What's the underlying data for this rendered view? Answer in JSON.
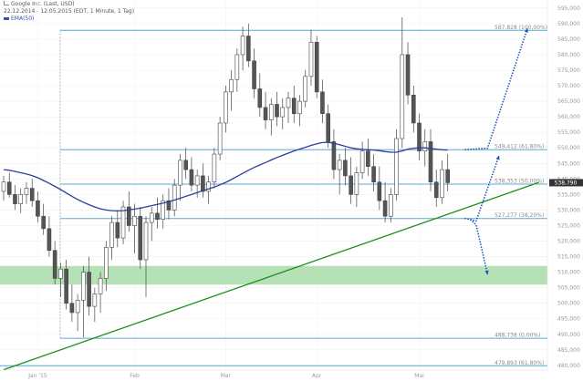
{
  "header": {
    "symbol": "Google Inc. (Last, USD)",
    "range": "22.12.2014 - 12.05.2015 (EDT, 1 Minute, 1 Tag)",
    "indicator": "EMA(50)"
  },
  "colors": {
    "candle_up": "#ffffff",
    "candle_down": "#555555",
    "candle_edge": "#444444",
    "ema": "#2e3d9c",
    "level_line": "#5aa9d6",
    "trend_line": "#1e8e1e",
    "support_zone": "#a9dba9",
    "projection": "#1a4fb8",
    "axis_text": "#999999",
    "last_price_box": "#333333"
  },
  "chart_data": {
    "type": "candlestick",
    "title": "",
    "x_labels": [
      "Jan '15",
      "Feb",
      "Mar",
      "Apr",
      "Mai"
    ],
    "y_ticks": [
      480,
      485,
      490,
      495,
      500,
      505,
      510,
      515,
      520,
      525,
      530,
      535,
      540,
      545,
      550,
      555,
      560,
      565,
      570,
      575,
      580,
      585,
      590,
      595
    ],
    "y_tick_labels": [
      "480,000",
      "485,000",
      "490,000",
      "495,000",
      "500,000",
      "505,000",
      "510,000",
      "515,000",
      "520,000",
      "525,000",
      "530,000",
      "535,000",
      "540,000",
      "545,000",
      "550,000",
      "555,000",
      "560,000",
      "565,000",
      "570,000",
      "575,000",
      "580,000",
      "585,000",
      "590,000",
      "595,000"
    ],
    "ylim": [
      478.5,
      597
    ],
    "last_price": 538.79,
    "last_price_label": "538,790",
    "fib_levels": [
      {
        "value": 587.828,
        "label": "587,828 (100,00%)"
      },
      {
        "value": 549.412,
        "label": "549,412 (61,80%)"
      },
      {
        "value": 538.353,
        "label": "538,353 (50,00%)"
      },
      {
        "value": 527.277,
        "label": "527,277 (38,20%)"
      },
      {
        "value": 488.738,
        "label": "488,738 (0,00%)"
      },
      {
        "value": 479.893,
        "label": "479,893 (61,80%)"
      }
    ],
    "support_zone": [
      506,
      512
    ],
    "candles": [
      {
        "o": 536,
        "h": 541,
        "l": 533,
        "c": 539
      },
      {
        "o": 539,
        "h": 542,
        "l": 534,
        "c": 535
      },
      {
        "o": 535,
        "h": 538,
        "l": 530,
        "c": 532
      },
      {
        "o": 532,
        "h": 537,
        "l": 529,
        "c": 535
      },
      {
        "o": 535,
        "h": 539,
        "l": 532,
        "c": 537
      },
      {
        "o": 537,
        "h": 540,
        "l": 531,
        "c": 533
      },
      {
        "o": 533,
        "h": 536,
        "l": 526,
        "c": 528
      },
      {
        "o": 528,
        "h": 532,
        "l": 522,
        "c": 524
      },
      {
        "o": 524,
        "h": 528,
        "l": 515,
        "c": 517
      },
      {
        "o": 517,
        "h": 520,
        "l": 506,
        "c": 508
      },
      {
        "o": 508,
        "h": 513,
        "l": 502,
        "c": 511
      },
      {
        "o": 511,
        "h": 514,
        "l": 498,
        "c": 500
      },
      {
        "o": 500,
        "h": 506,
        "l": 494,
        "c": 497
      },
      {
        "o": 497,
        "h": 503,
        "l": 491,
        "c": 501
      },
      {
        "o": 501,
        "h": 512,
        "l": 489,
        "c": 510
      },
      {
        "o": 510,
        "h": 515,
        "l": 496,
        "c": 499
      },
      {
        "o": 499,
        "h": 505,
        "l": 494,
        "c": 503
      },
      {
        "o": 503,
        "h": 510,
        "l": 497,
        "c": 508
      },
      {
        "o": 508,
        "h": 520,
        "l": 504,
        "c": 518
      },
      {
        "o": 518,
        "h": 528,
        "l": 514,
        "c": 526
      },
      {
        "o": 526,
        "h": 530,
        "l": 518,
        "c": 521
      },
      {
        "o": 521,
        "h": 533,
        "l": 519,
        "c": 531
      },
      {
        "o": 531,
        "h": 536,
        "l": 523,
        "c": 525
      },
      {
        "o": 525,
        "h": 532,
        "l": 516,
        "c": 528
      },
      {
        "o": 528,
        "h": 531,
        "l": 511,
        "c": 514
      },
      {
        "o": 514,
        "h": 528,
        "l": 502,
        "c": 526
      },
      {
        "o": 526,
        "h": 531,
        "l": 520,
        "c": 529
      },
      {
        "o": 529,
        "h": 534,
        "l": 524,
        "c": 527
      },
      {
        "o": 527,
        "h": 535,
        "l": 524,
        "c": 533
      },
      {
        "o": 533,
        "h": 537,
        "l": 527,
        "c": 530
      },
      {
        "o": 530,
        "h": 540,
        "l": 528,
        "c": 538
      },
      {
        "o": 538,
        "h": 548,
        "l": 533,
        "c": 546
      },
      {
        "o": 546,
        "h": 550,
        "l": 540,
        "c": 543
      },
      {
        "o": 543,
        "h": 547,
        "l": 536,
        "c": 538
      },
      {
        "o": 538,
        "h": 543,
        "l": 534,
        "c": 541
      },
      {
        "o": 541,
        "h": 545,
        "l": 534,
        "c": 536
      },
      {
        "o": 536,
        "h": 541,
        "l": 532,
        "c": 539
      },
      {
        "o": 539,
        "h": 550,
        "l": 537,
        "c": 548
      },
      {
        "o": 548,
        "h": 560,
        "l": 546,
        "c": 558
      },
      {
        "o": 558,
        "h": 570,
        "l": 555,
        "c": 568
      },
      {
        "o": 568,
        "h": 575,
        "l": 562,
        "c": 572
      },
      {
        "o": 572,
        "h": 582,
        "l": 568,
        "c": 580
      },
      {
        "o": 580,
        "h": 589,
        "l": 575,
        "c": 586
      },
      {
        "o": 586,
        "h": 590,
        "l": 576,
        "c": 578
      },
      {
        "o": 578,
        "h": 582,
        "l": 566,
        "c": 569
      },
      {
        "o": 569,
        "h": 574,
        "l": 560,
        "c": 563
      },
      {
        "o": 563,
        "h": 568,
        "l": 556,
        "c": 559
      },
      {
        "o": 559,
        "h": 566,
        "l": 554,
        "c": 564
      },
      {
        "o": 564,
        "h": 568,
        "l": 557,
        "c": 560
      },
      {
        "o": 560,
        "h": 566,
        "l": 556,
        "c": 563
      },
      {
        "o": 563,
        "h": 568,
        "l": 558,
        "c": 566
      },
      {
        "o": 566,
        "h": 570,
        "l": 558,
        "c": 561
      },
      {
        "o": 561,
        "h": 567,
        "l": 557,
        "c": 565
      },
      {
        "o": 565,
        "h": 575,
        "l": 563,
        "c": 573
      },
      {
        "o": 573,
        "h": 588,
        "l": 570,
        "c": 584
      },
      {
        "o": 584,
        "h": 586,
        "l": 566,
        "c": 568
      },
      {
        "o": 568,
        "h": 572,
        "l": 558,
        "c": 561
      },
      {
        "o": 561,
        "h": 564,
        "l": 550,
        "c": 552
      },
      {
        "o": 552,
        "h": 556,
        "l": 540,
        "c": 543
      },
      {
        "o": 543,
        "h": 548,
        "l": 535,
        "c": 546
      },
      {
        "o": 546,
        "h": 550,
        "l": 538,
        "c": 541
      },
      {
        "o": 541,
        "h": 547,
        "l": 532,
        "c": 535
      },
      {
        "o": 535,
        "h": 544,
        "l": 531,
        "c": 542
      },
      {
        "o": 542,
        "h": 552,
        "l": 540,
        "c": 549
      },
      {
        "o": 549,
        "h": 553,
        "l": 541,
        "c": 544
      },
      {
        "o": 544,
        "h": 548,
        "l": 536,
        "c": 539
      },
      {
        "o": 539,
        "h": 544,
        "l": 530,
        "c": 533
      },
      {
        "o": 533,
        "h": 539,
        "l": 526,
        "c": 528
      },
      {
        "o": 528,
        "h": 537,
        "l": 526,
        "c": 535
      },
      {
        "o": 535,
        "h": 556,
        "l": 533,
        "c": 553
      },
      {
        "o": 553,
        "h": 592,
        "l": 550,
        "c": 580
      },
      {
        "o": 580,
        "h": 584,
        "l": 564,
        "c": 567
      },
      {
        "o": 567,
        "h": 570,
        "l": 555,
        "c": 558
      },
      {
        "o": 558,
        "h": 561,
        "l": 546,
        "c": 549
      },
      {
        "o": 549,
        "h": 556,
        "l": 544,
        "c": 552
      },
      {
        "o": 552,
        "h": 556,
        "l": 536,
        "c": 539
      },
      {
        "o": 539,
        "h": 543,
        "l": 531,
        "c": 534
      },
      {
        "o": 534,
        "h": 546,
        "l": 532,
        "c": 543
      },
      {
        "o": 543,
        "h": 548,
        "l": 536,
        "c": 538.79
      }
    ],
    "ema50": [
      543,
      542.8,
      542.4,
      542,
      541.6,
      541.1,
      540.4,
      539.5,
      538.6,
      537.6,
      536.6,
      535.5,
      534.4,
      533.4,
      532.5,
      531.7,
      531,
      530.4,
      530,
      529.8,
      529.7,
      529.8,
      530,
      530.3,
      530.6,
      531,
      531.4,
      531.8,
      532.2,
      532.7,
      533.2,
      533.8,
      534.4,
      535,
      535.6,
      536.2,
      536.8,
      537.4,
      538.1,
      538.9,
      539.8,
      540.8,
      541.8,
      542.8,
      543.7,
      544.5,
      545.3,
      546.1,
      546.9,
      547.6,
      548.3,
      549,
      549.6,
      550.2,
      550.8,
      551.3,
      551.7,
      551.8,
      551.5,
      551,
      550.5,
      550,
      549.7,
      549.5,
      549.4,
      549.3,
      549.1,
      548.8,
      548.6,
      548.6,
      549,
      549.6,
      549.9,
      550,
      550,
      549.8,
      549.6,
      549.4,
      549.3
    ],
    "trend_line": [
      {
        "i": 0,
        "v": 478.6
      },
      {
        "i": 94,
        "v": 538.9
      }
    ],
    "projections": [
      {
        "from": {
          "i": 81,
          "v": 549.4
        },
        "to": {
          "i": 85,
          "v": 549.9
        },
        "to2": {
          "i": 92,
          "v": 588.4
        }
      },
      {
        "from": {
          "i": 81,
          "v": 527.3
        },
        "to": {
          "i": 83,
          "v": 526.5
        },
        "to2": {
          "i": 87,
          "v": 547.4
        }
      },
      {
        "from": {
          "i": 82,
          "v": 527.0
        },
        "to": {
          "i": 83,
          "v": 525.2
        },
        "to2": {
          "i": 85,
          "v": 509.3
        }
      }
    ],
    "x_label_positions": [
      6,
      23,
      39,
      55,
      73
    ]
  }
}
